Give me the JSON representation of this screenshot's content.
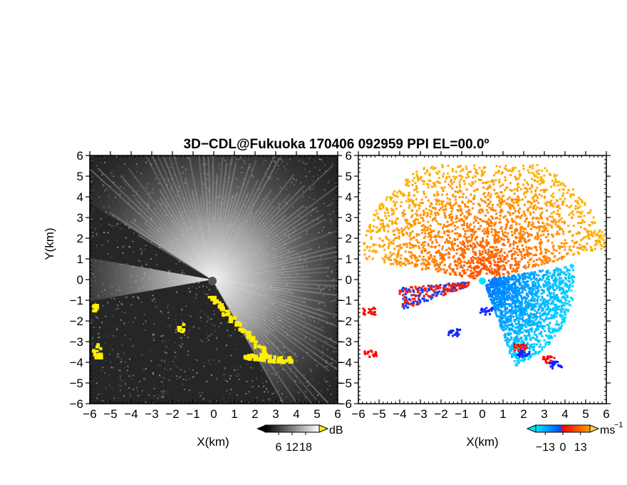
{
  "title": "3D−CDL@Fukuoka 170406 092959 PPI EL=00.0º",
  "chart_data": [
    {
      "type": "heatmap",
      "panel": "left",
      "quantity": "signal-to-noise ratio",
      "xlabel": "X(km)",
      "ylabel": "Y(km)",
      "xlim": [
        -6,
        6
      ],
      "ylim": [
        -6,
        6
      ],
      "xticks": [
        "−6",
        "−5",
        "−4",
        "−3",
        "−2",
        "−1",
        "0",
        "1",
        "2",
        "3",
        "4",
        "5",
        "6"
      ],
      "yticks": [
        "6",
        "5",
        "4",
        "3",
        "2",
        "1",
        "0",
        "−1",
        "−2",
        "−3",
        "−4",
        "−5",
        "−6"
      ],
      "colorbar": {
        "unit": "dB",
        "ticks": [
          "6",
          "12",
          "18"
        ],
        "range": [
          0,
          24
        ],
        "colormap": "grayscale"
      },
      "highlight_color": "#ffee00",
      "background_color": "#2a2a2a"
    },
    {
      "type": "heatmap",
      "panel": "right",
      "quantity": "radial velocity",
      "xlabel": "X(km)",
      "ylabel": "",
      "xlim": [
        -6,
        6
      ],
      "ylim": [
        -6,
        6
      ],
      "xticks": [
        "−6",
        "−5",
        "−4",
        "−3",
        "−2",
        "−1",
        "0",
        "1",
        "2",
        "3",
        "4",
        "5",
        "6"
      ],
      "yticks": [
        "6",
        "5",
        "4",
        "3",
        "2",
        "1",
        "0",
        "−1",
        "−2",
        "−3",
        "−4",
        "−5",
        "−6"
      ],
      "colorbar": {
        "unit": "ms",
        "unit_exp": "−1",
        "ticks": [
          "−13",
          "0",
          "13"
        ],
        "range": [
          -20,
          20
        ],
        "colors": [
          "#00e5ff",
          "#0050ff",
          "#ff0000",
          "#ffa000"
        ]
      }
    }
  ]
}
